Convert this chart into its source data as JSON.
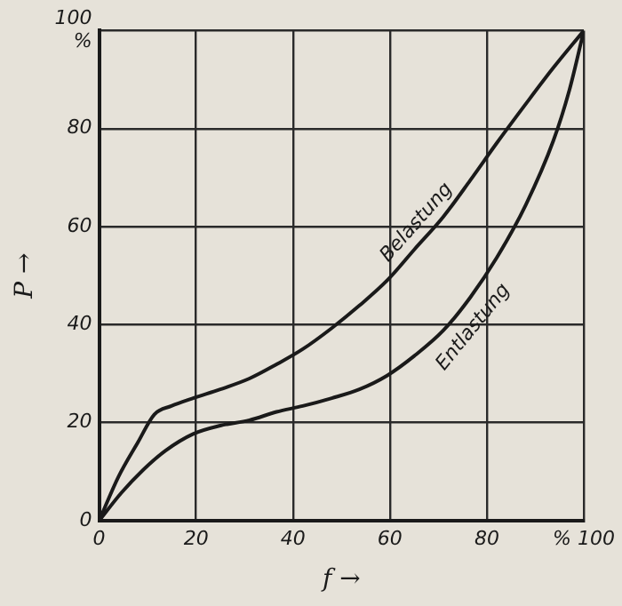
{
  "chart_data": {
    "type": "line",
    "xlabel": "f →",
    "ylabel": "P →",
    "xlim": [
      0,
      100
    ],
    "ylim": [
      0,
      100
    ],
    "xticks": [
      0,
      20,
      40,
      60,
      80,
      {
        "value": 100,
        "label": "% 100"
      }
    ],
    "yticks": [
      0,
      20,
      40,
      60,
      80,
      {
        "value": 100,
        "label": "100\n%"
      }
    ],
    "grid": true,
    "legend": false,
    "marker": "none",
    "line_style": "solid",
    "series": [
      {
        "name": "Belastung",
        "color": "#1a1a1a",
        "x": [
          0,
          4,
          8,
          11.4,
          14.9,
          19.4,
          25,
          31,
          36.6,
          42,
          48,
          53.7,
          59.4,
          65,
          71,
          76.6,
          82,
          88,
          93.7,
          100
        ],
        "values": [
          0,
          9,
          16,
          21.7,
          23.4,
          25,
          26.8,
          29,
          31.9,
          35,
          39.3,
          43.9,
          49,
          55.3,
          62,
          69.5,
          77,
          85,
          92.4,
          100
        ]
      },
      {
        "name": "Entlastung",
        "color": "#1a1a1a",
        "x": [
          0,
          4.6,
          9,
          13.7,
          19.4,
          25,
          31,
          36.6,
          42,
          48,
          53.7,
          59.4,
          65,
          71,
          76.6,
          82,
          88,
          93.7,
          97,
          100
        ],
        "values": [
          0,
          5.7,
          10.3,
          14.3,
          17.7,
          19.4,
          20.5,
          22.2,
          23.4,
          25,
          26.8,
          29.6,
          33.6,
          38.8,
          45.6,
          53.6,
          64.4,
          77.5,
          87.8,
          100
        ]
      }
    ]
  }
}
